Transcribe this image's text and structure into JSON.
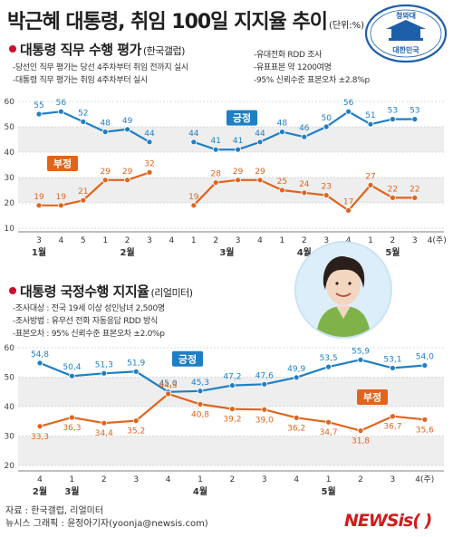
{
  "header": {
    "title": "박근혜 대통령, 취임 100일 지지율 추이",
    "unit": "(단위:%)"
  },
  "seal": {
    "top_text": "청와대",
    "bottom_text": "대한민국"
  },
  "photo": {
    "alt_icon": "person-portrait-icon"
  },
  "colors": {
    "positive": "#1f7fc4",
    "negative": "#e0641d",
    "bullet": "#c8102e",
    "band": "#eeeeee"
  },
  "section1": {
    "title": "대통령 직무 수행 평가",
    "source": "(한국갤럽)",
    "notes_left": [
      "-당선인 직무 평가는 당선 4주차부터 취임 전까지 실시",
      "-대통령 직무 평가는 취임 4주차부터 실시"
    ],
    "notes_right": [
      "-유대전화 RDD 조사",
      "-유표표본 약 1200여명",
      "-95% 신뢰수준 표본오차 ±2.8%p"
    ]
  },
  "section2": {
    "title": "대통령 국정수행 지지율",
    "source": "(리얼미터)",
    "notes": [
      "-조사대상 : 전국 19세 이상 성인남녀 2,500명",
      "-조사방법 : 유무선 전화 자동응답 RDD 방식",
      "-표본오차 : 95% 신뢰수준 표본오차 ±2.0%p"
    ]
  },
  "chart_data": [
    {
      "type": "line",
      "title": "대통령 직무 수행 평가",
      "ylim": [
        10,
        60
      ],
      "yticks": [
        10,
        20,
        30,
        40,
        50,
        60
      ],
      "grid": true,
      "x_ticks": [
        "3",
        "4",
        "5",
        "1",
        "2",
        "3",
        "4",
        "1",
        "2",
        "3",
        "4",
        "1",
        "2",
        "3",
        "4",
        "1",
        "2",
        "3",
        "4(주)"
      ],
      "month_labels": [
        {
          "label": "1월",
          "at": 0
        },
        {
          "label": "2월",
          "at": 4
        },
        {
          "label": "3월",
          "at": 8.5
        },
        {
          "label": "4월",
          "at": 12
        },
        {
          "label": "5월",
          "at": 16
        }
      ],
      "series": [
        {
          "name": "긍정",
          "color": "#1f7fc4",
          "segments": [
            {
              "x": [
                0,
                1,
                2,
                3,
                4,
                5
              ],
              "values": [
                55,
                56,
                52,
                48,
                49,
                44
              ]
            },
            {
              "x": [
                7,
                8,
                9,
                10,
                11,
                12,
                13,
                14,
                15,
                16,
                17
              ],
              "values": [
                44,
                41,
                41,
                44,
                48,
                46,
                50,
                56,
                51,
                53,
                53
              ]
            }
          ]
        },
        {
          "name": "부정",
          "color": "#e0641d",
          "segments": [
            {
              "x": [
                0,
                1,
                2,
                3,
                4,
                5
              ],
              "values": [
                19,
                19,
                21,
                29,
                29,
                32
              ]
            },
            {
              "x": [
                7,
                8,
                9,
                10,
                11,
                12,
                13,
                14,
                15,
                16,
                17
              ],
              "values": [
                19,
                28,
                29,
                29,
                25,
                24,
                23,
                17,
                27,
                22,
                22
              ]
            }
          ]
        }
      ]
    },
    {
      "type": "line",
      "title": "대통령 국정수행 지지율",
      "ylim": [
        20,
        60
      ],
      "yticks": [
        20,
        30,
        40,
        50,
        60
      ],
      "grid": true,
      "x_ticks": [
        "4",
        "1",
        "2",
        "3",
        "4",
        "1",
        "2",
        "3",
        "4",
        "1",
        "2",
        "3",
        "4(주)"
      ],
      "month_labels": [
        {
          "label": "2월",
          "at": 0
        },
        {
          "label": "3월",
          "at": 1
        },
        {
          "label": "4월",
          "at": 5
        },
        {
          "label": "5월",
          "at": 9
        }
      ],
      "series": [
        {
          "name": "긍정",
          "color": "#1f7fc4",
          "x": [
            0,
            1,
            2,
            3,
            4,
            5,
            6,
            7,
            8,
            9,
            10,
            11,
            12
          ],
          "values": [
            54.8,
            50.4,
            51.3,
            51.9,
            45.0,
            45.3,
            47.2,
            47.6,
            49.9,
            53.5,
            55.9,
            53.1,
            54.0
          ],
          "labels": [
            "54,8",
            "50,4",
            "51,3",
            "51,9",
            "45,0",
            "45,3",
            "47,2",
            "47,6",
            "49,9",
            "53,5",
            "55,9",
            "53,1",
            "54,0"
          ]
        },
        {
          "name": "부정",
          "color": "#e0641d",
          "x": [
            0,
            1,
            2,
            3,
            4,
            5,
            6,
            7,
            8,
            9,
            10,
            11,
            12
          ],
          "values": [
            33.3,
            36.3,
            34.4,
            35.2,
            44.3,
            40.8,
            39.2,
            39.0,
            36.2,
            34.7,
            31.8,
            36.7,
            35.6
          ],
          "labels": [
            "33,3",
            "36,3",
            "34,4",
            "35,2",
            "44,3",
            "40,8",
            "39,2",
            "39,0",
            "36,2",
            "34,7",
            "31,8",
            "36,7",
            "35,6"
          ]
        }
      ]
    }
  ],
  "footer": {
    "source": "자료 : 한국갤럽, 리얼미터",
    "credit": "뉴시스 그래픽 : 윤정아기자(yoonja@newsis.com)"
  },
  "logo": {
    "text": "NEWSis( )"
  }
}
